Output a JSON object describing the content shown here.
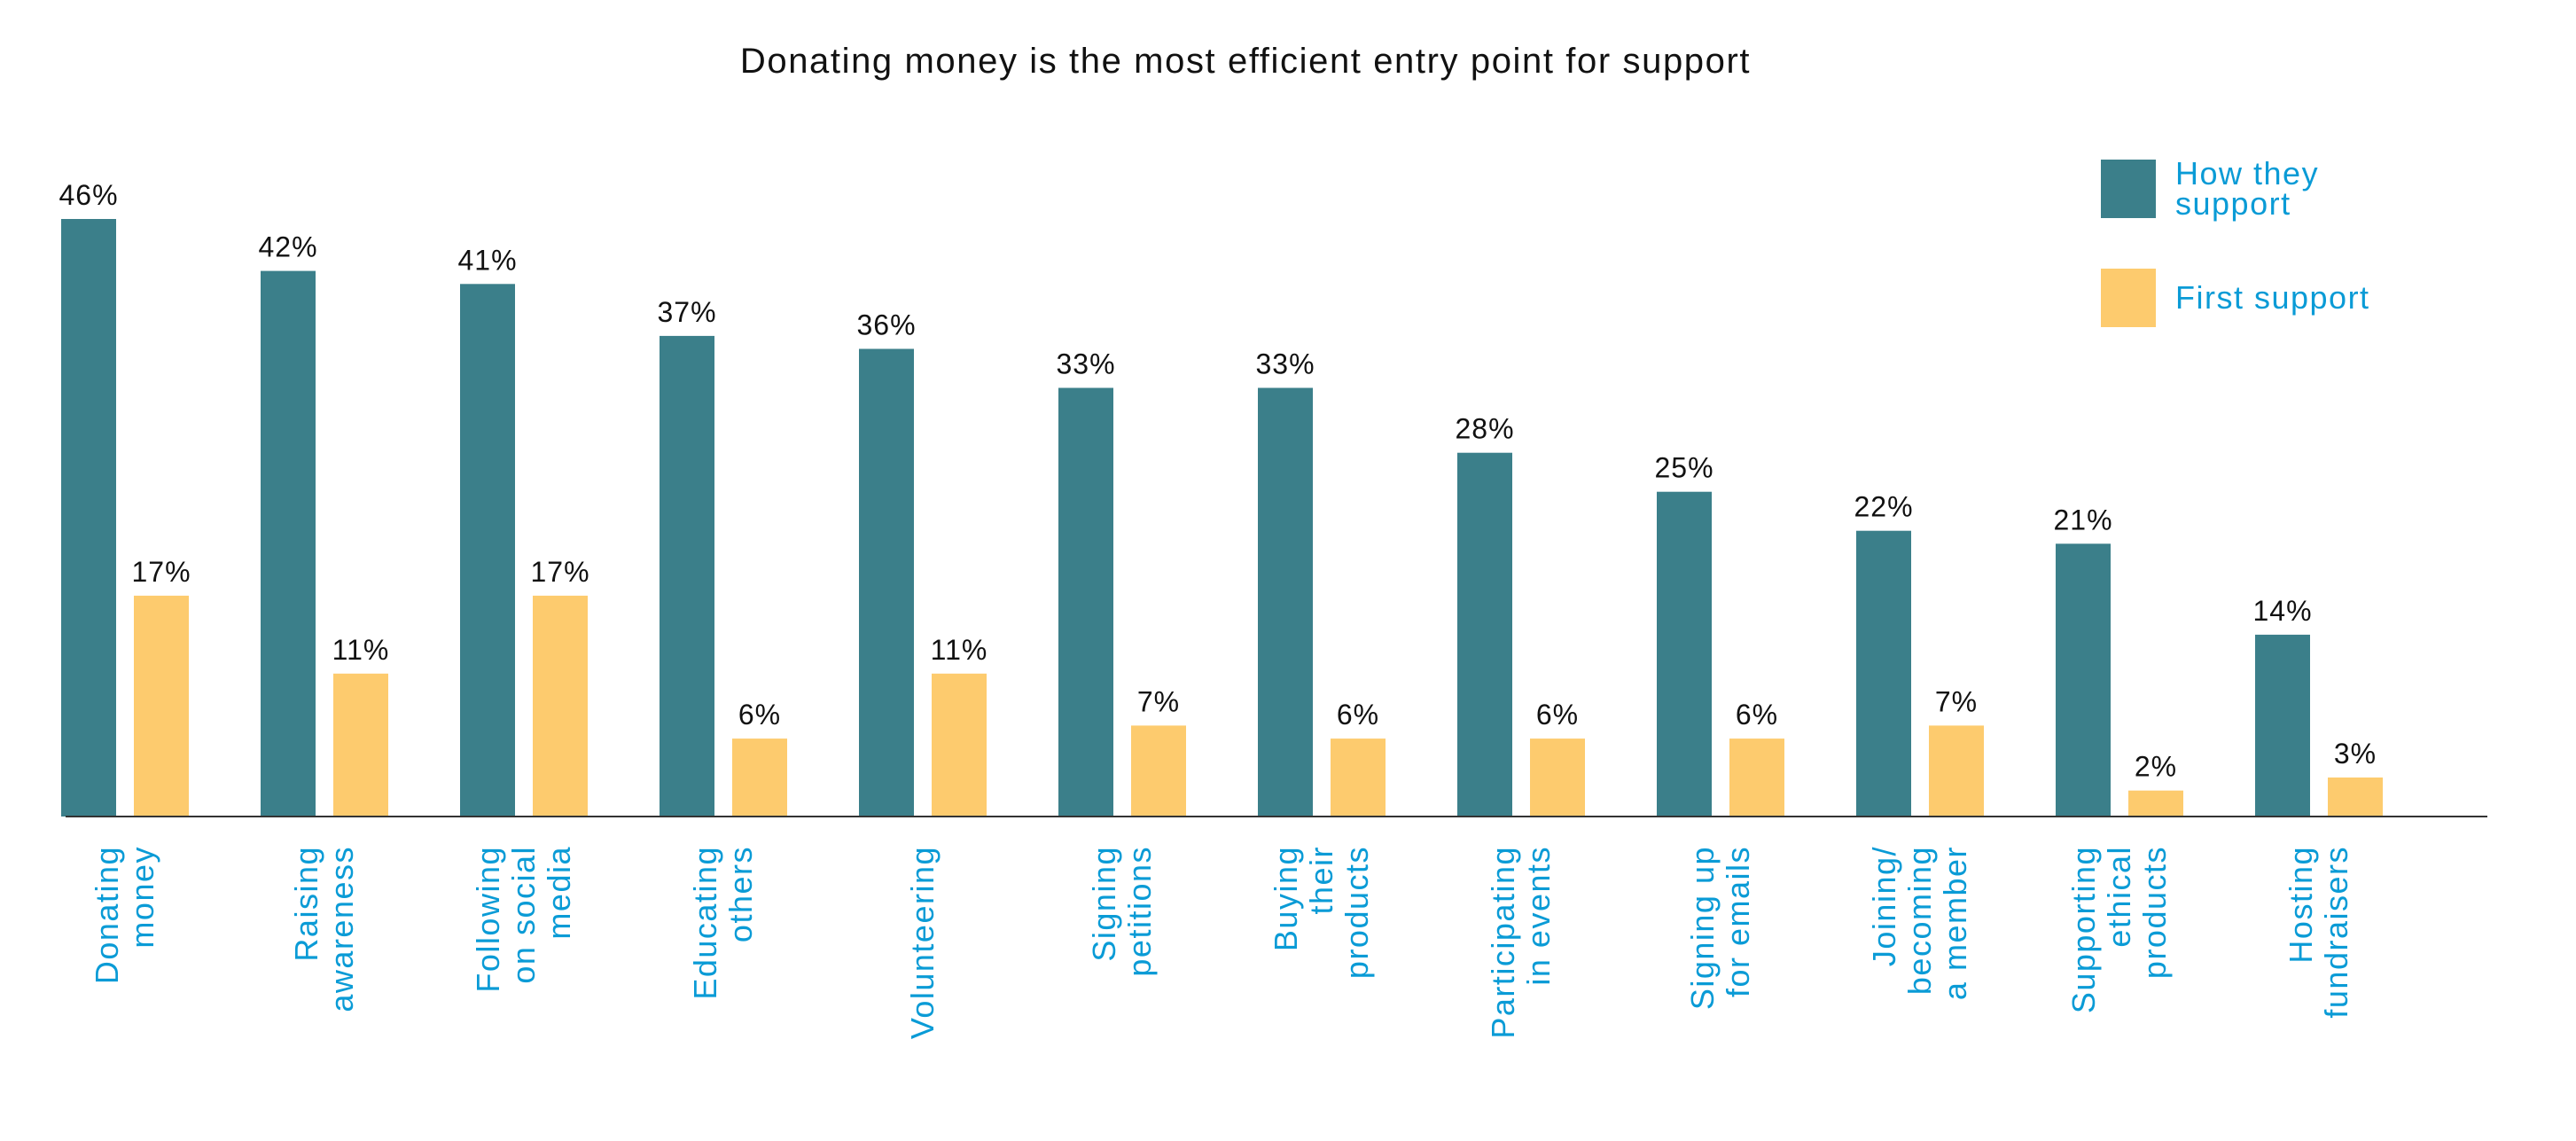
{
  "chart_data": {
    "type": "bar",
    "title": "Donating money is the most efficient entry point for support",
    "xlabel": "",
    "ylabel": "",
    "ylim": [
      0,
      50
    ],
    "grid": false,
    "legend_placement": "top-right",
    "value_suffix": "%",
    "categories": [
      [
        "Donating",
        "money"
      ],
      [
        "Raising",
        "awareness"
      ],
      [
        "Following",
        "on social",
        "media"
      ],
      [
        "Educating",
        "others"
      ],
      [
        "Volunteering"
      ],
      [
        "Signing",
        "petitions"
      ],
      [
        "Buying",
        "their",
        "products"
      ],
      [
        "Participating",
        "in events"
      ],
      [
        "Signing up",
        "for emails"
      ],
      [
        "Joining/",
        "becoming",
        "a member"
      ],
      [
        "Supporting",
        "ethical",
        "products"
      ],
      [
        "Hosting",
        "fundraisers"
      ]
    ],
    "series": [
      {
        "name": "How they support",
        "legend_lines": [
          "How they",
          "support"
        ],
        "color": "#3b7f8a",
        "values": [
          46,
          42,
          41,
          37,
          36,
          33,
          33,
          28,
          25,
          22,
          21,
          14
        ]
      },
      {
        "name": "First support",
        "legend_lines": [
          "First support"
        ],
        "color": "#fdcb6e",
        "values": [
          17,
          11,
          17,
          6,
          11,
          7,
          6,
          6,
          6,
          7,
          2,
          3
        ]
      }
    ],
    "colors": {
      "label_text": "#0a9bd6",
      "axis": "#333333",
      "value_text": "#111111"
    }
  }
}
